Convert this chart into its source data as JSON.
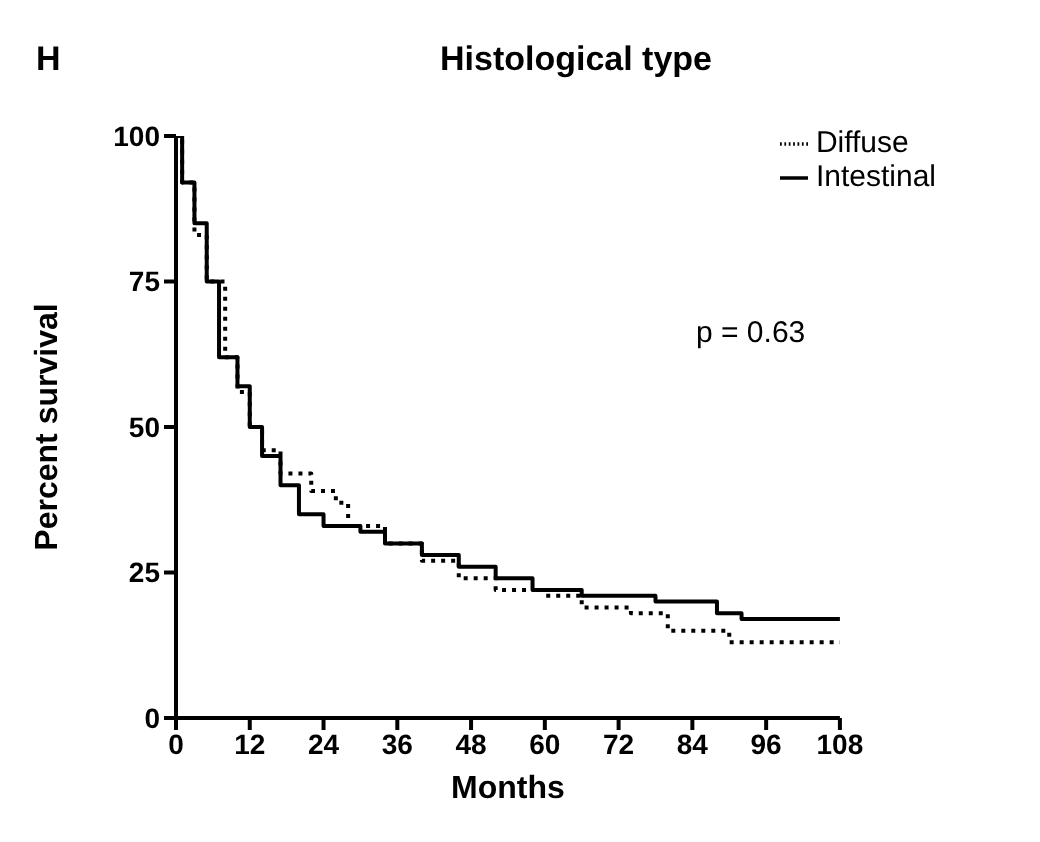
{
  "chart_data": {
    "type": "step",
    "title": "Histological type",
    "xlabel": "Months",
    "ylabel": "Percent survival",
    "xlim": [
      0,
      108
    ],
    "xticks": [
      0,
      12,
      24,
      36,
      48,
      60,
      72,
      84,
      96,
      108
    ],
    "ylim": [
      0,
      100
    ],
    "yticks": [
      0,
      25,
      50,
      75,
      100
    ],
    "grid": false,
    "legend": "top right",
    "marker": "none",
    "annotations": [
      "H",
      "p = 0.63"
    ],
    "series": [
      {
        "name": "Diffuse",
        "color": "#000000",
        "line_style": "dotted",
        "x": [
          0,
          1,
          3,
          5,
          8,
          10,
          12,
          14,
          17,
          22,
          26,
          28,
          34,
          40,
          46,
          52,
          60,
          66,
          74,
          80,
          90,
          108
        ],
        "values": [
          100,
          92,
          83,
          75,
          62,
          56,
          50,
          46,
          42,
          39,
          37,
          33,
          30,
          27,
          24,
          22,
          21,
          19,
          18,
          15,
          13,
          13
        ]
      },
      {
        "name": "Intestinal",
        "color": "#000000",
        "line_style": "solid",
        "x": [
          0,
          1,
          3,
          5,
          7,
          10,
          12,
          14,
          17,
          20,
          24,
          30,
          34,
          40,
          46,
          52,
          58,
          66,
          78,
          88,
          92,
          108
        ],
        "values": [
          100,
          92,
          85,
          75,
          62,
          57,
          50,
          45,
          40,
          35,
          33,
          32,
          30,
          28,
          26,
          24,
          22,
          21,
          20,
          18,
          17,
          17
        ]
      }
    ]
  }
}
